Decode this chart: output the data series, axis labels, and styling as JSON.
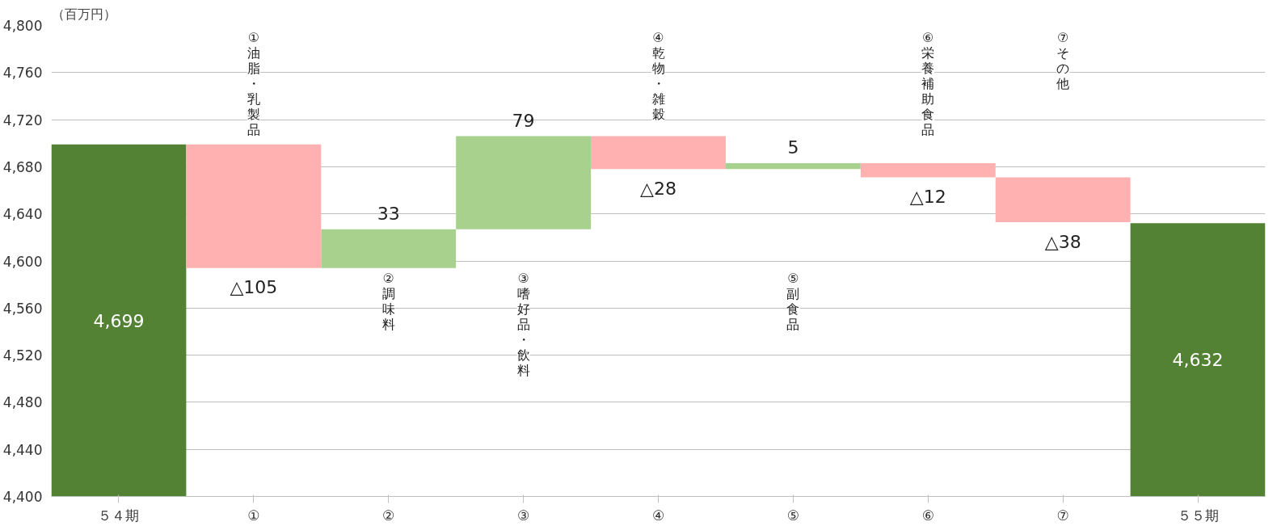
{
  "chart_data": {
    "type": "bar",
    "ylabel": "（百万円）",
    "categories": [
      "５４期",
      "①",
      "②",
      "③",
      "④",
      "⑤",
      "⑥",
      "⑦",
      "５５期"
    ],
    "values": [
      4699,
      -105,
      33,
      79,
      -28,
      5,
      -12,
      -38,
      4632
    ],
    "base": [
      null,
      4699,
      4594,
      4627,
      4706,
      4678,
      4683,
      4671,
      null
    ],
    "colors": [
      "#548235",
      "#ffb1b1",
      "#a9d18e",
      "#a9d18e",
      "#ffb1b1",
      "#a9d18e",
      "#ffb1b1",
      "#ffb1b1",
      "#548235"
    ],
    "value_labels": [
      "4,699",
      "△105",
      "33",
      "79",
      "△28",
      "5",
      "△12",
      "△38",
      "4,632"
    ],
    "ylim": [
      4400,
      4800
    ],
    "yticks": [
      {
        "value": 4400,
        "label": "4,400"
      },
      {
        "value": 4440,
        "label": "4,440"
      },
      {
        "value": 4480,
        "label": "4,480"
      },
      {
        "value": 4520,
        "label": "4,520"
      },
      {
        "value": 4560,
        "label": "4,560"
      },
      {
        "value": 4600,
        "label": "4,600"
      },
      {
        "value": 4640,
        "label": "4,640"
      },
      {
        "value": 4680,
        "label": "4,680"
      },
      {
        "value": 4720,
        "label": "4,720"
      },
      {
        "value": 4760,
        "label": "4,760"
      },
      {
        "value": 4800,
        "label": "4,800"
      }
    ],
    "grid": "y",
    "annotations": [
      "①油脂・乳製品",
      "②調味料",
      "③嗜好品・飲料",
      "④乾物・雑穀",
      "⑤副食品",
      "⑥栄養補助食品",
      "⑦その他"
    ]
  }
}
